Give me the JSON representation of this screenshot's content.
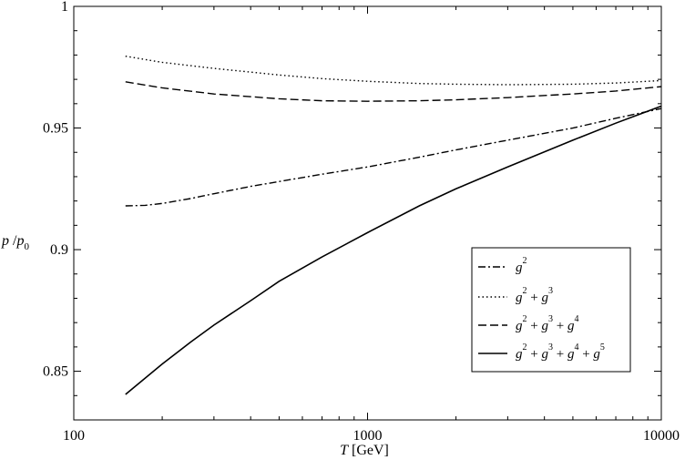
{
  "chart_data": {
    "type": "line",
    "title": "",
    "xlabel": {
      "var": "T",
      "unit": " [GeV]"
    },
    "ylabel": {
      "base": "p",
      "sep": " /",
      "base2": "p",
      "sub": "0"
    },
    "x_scale": "log",
    "xlim": [
      100,
      10000
    ],
    "ylim": [
      0.83,
      1.0
    ],
    "x_ticks": [
      100,
      1000,
      10000
    ],
    "x_tick_labels": [
      "100",
      "1000",
      "10000"
    ],
    "y_ticks": [
      0.85,
      0.9,
      0.95,
      1.0
    ],
    "y_tick_labels": [
      "0.85",
      "0.9",
      "0.95",
      "1"
    ],
    "grid": false,
    "legend_position": "lower-right",
    "series": [
      {
        "name": "g^2",
        "legend_terms": [
          "2"
        ],
        "dash": "dashdot",
        "x": [
          150,
          175,
          200,
          250,
          300,
          400,
          500,
          700,
          1000,
          1500,
          2000,
          3000,
          5000,
          7000,
          10000
        ],
        "y": [
          0.918,
          0.9182,
          0.919,
          0.921,
          0.923,
          0.926,
          0.928,
          0.931,
          0.934,
          0.938,
          0.941,
          0.945,
          0.95,
          0.954,
          0.958
        ]
      },
      {
        "name": "g^2 + g^3",
        "legend_terms": [
          "2",
          "3"
        ],
        "dash": "dotted",
        "x": [
          150,
          200,
          300,
          500,
          700,
          1000,
          1500,
          2000,
          3000,
          5000,
          7000,
          10000
        ],
        "y": [
          0.9795,
          0.977,
          0.9745,
          0.9718,
          0.9703,
          0.9692,
          0.9683,
          0.968,
          0.9678,
          0.968,
          0.9685,
          0.9695
        ]
      },
      {
        "name": "g^2 + g^3 + g^4",
        "legend_terms": [
          "2",
          "3",
          "4"
        ],
        "dash": "dashed",
        "x": [
          150,
          200,
          300,
          500,
          700,
          1000,
          1500,
          2000,
          3000,
          5000,
          7000,
          10000
        ],
        "y": [
          0.969,
          0.9665,
          0.964,
          0.962,
          0.9612,
          0.961,
          0.9612,
          0.9616,
          0.9625,
          0.964,
          0.9652,
          0.967
        ]
      },
      {
        "name": "g^2 + g^3 + g^4 + g^5",
        "legend_terms": [
          "2",
          "3",
          "4",
          "5"
        ],
        "dash": "solid",
        "x": [
          150,
          200,
          250,
          300,
          400,
          500,
          700,
          1000,
          1500,
          2000,
          3000,
          5000,
          7000,
          10000
        ],
        "y": [
          0.8405,
          0.853,
          0.862,
          0.869,
          0.879,
          0.887,
          0.897,
          0.907,
          0.918,
          0.925,
          0.934,
          0.945,
          0.952,
          0.959
        ]
      }
    ],
    "legend_symbol": "g",
    "legend_plus": "+"
  }
}
